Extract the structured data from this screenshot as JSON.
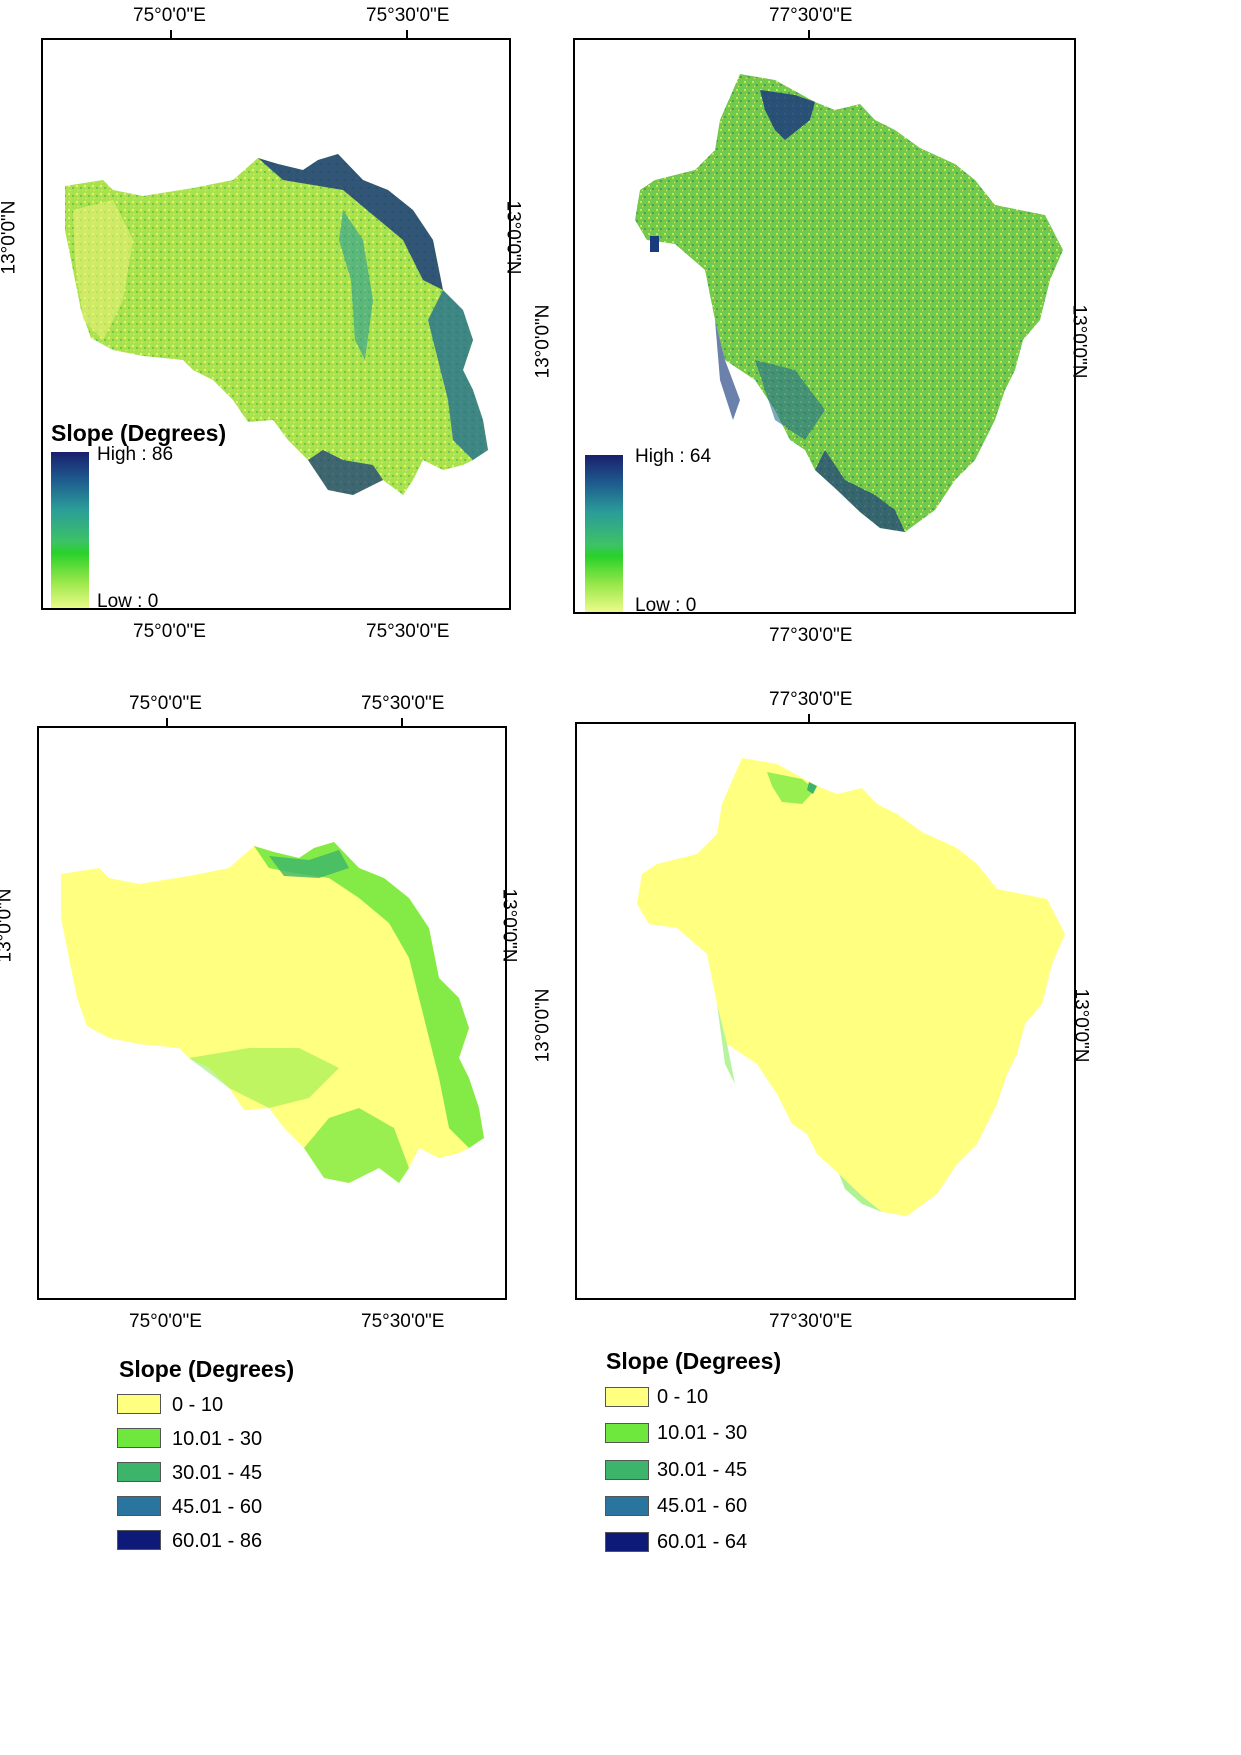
{
  "panels": [
    {
      "id": "top-left",
      "top_ticks": [
        "75°0'0\"E",
        "75°30'0\"E"
      ],
      "bottom_ticks": [
        "75°0'0\"E",
        "75°30'0\"E"
      ],
      "left_tick": "13°0'0\"N",
      "right_tick": "13°0'0\"N",
      "legend_title": "Slope (Degrees)",
      "legend_high": "High : 86",
      "legend_low": "Low : 0"
    },
    {
      "id": "top-right",
      "top_ticks": [
        "77°30'0\"E"
      ],
      "bottom_ticks": [
        "77°30'0\"E"
      ],
      "left_tick": "13°0'0\"N",
      "right_tick": "13°0'0\"N",
      "legend_high": "High : 64",
      "legend_low": "Low : 0"
    },
    {
      "id": "bottom-left",
      "top_ticks": [
        "75°0'0\"E",
        "75°30'0\"E"
      ],
      "bottom_ticks": [
        "75°0'0\"E",
        "75°30'0\"E"
      ],
      "left_tick": "13°0'0\"N",
      "right_tick": "13°0'0\"N"
    },
    {
      "id": "bottom-right",
      "top_ticks": [
        "77°30'0\"E"
      ],
      "bottom_ticks": [
        "77°30'0\"E"
      ],
      "left_tick": "13°0'0\"N",
      "right_tick": "13°0'0\"N"
    }
  ],
  "class_legends": [
    {
      "title": "Slope (Degrees)",
      "classes": [
        {
          "label": "0 - 10",
          "color": "#ffff80"
        },
        {
          "label": "10.01 - 30",
          "color": "#6ee83c"
        },
        {
          "label": "30.01 - 45",
          "color": "#3cb46a"
        },
        {
          "label": "45.01 - 60",
          "color": "#2a74a0"
        },
        {
          "label": "60.01 - 86",
          "color": "#0e1a78"
        }
      ]
    },
    {
      "title": "Slope (Degrees)",
      "classes": [
        {
          "label": "0 - 10",
          "color": "#ffff80"
        },
        {
          "label": "10.01 - 30",
          "color": "#6ee83c"
        },
        {
          "label": "30.01 - 45",
          "color": "#3cb46a"
        },
        {
          "label": "45.01 - 60",
          "color": "#2a74a0"
        },
        {
          "label": "60.01 - 64",
          "color": "#0e1a78"
        }
      ]
    }
  ],
  "colors": {
    "continuous_base": "#a9e24a",
    "continuous_steep": "#1b3c7c",
    "classified_base": "#ffff80",
    "classified_green": "#6ee83c"
  }
}
